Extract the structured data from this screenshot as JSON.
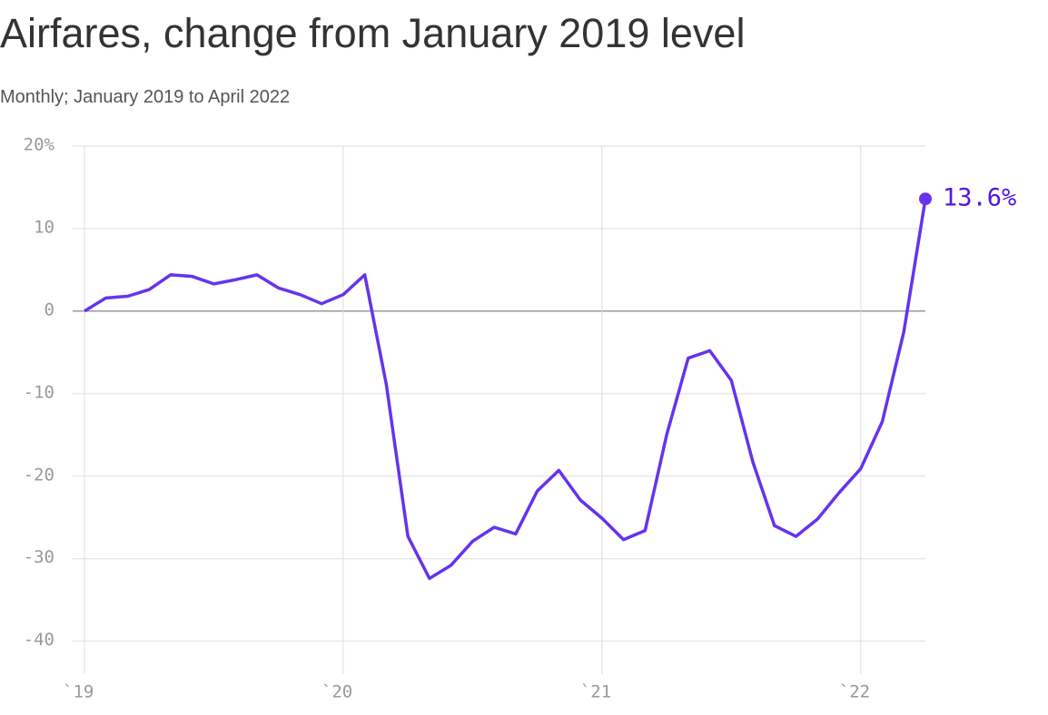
{
  "chart_data": {
    "type": "line",
    "title": "Airfares, change from January 2019 level",
    "subtitle": "Monthly; January 2019 to April 2022",
    "x": [
      "2019-01",
      "2019-02",
      "2019-03",
      "2019-04",
      "2019-05",
      "2019-06",
      "2019-07",
      "2019-08",
      "2019-09",
      "2019-10",
      "2019-11",
      "2019-12",
      "2020-01",
      "2020-02",
      "2020-03",
      "2020-04",
      "2020-05",
      "2020-06",
      "2020-07",
      "2020-08",
      "2020-09",
      "2020-10",
      "2020-11",
      "2020-12",
      "2021-01",
      "2021-02",
      "2021-03",
      "2021-04",
      "2021-05",
      "2021-06",
      "2021-07",
      "2021-08",
      "2021-09",
      "2021-10",
      "2021-11",
      "2021-12",
      "2022-01",
      "2022-02",
      "2022-03",
      "2022-04"
    ],
    "series": [
      {
        "color": "#6633ee",
        "values": [
          0,
          1.6,
          1.8,
          2.6,
          4.4,
          4.2,
          3.3,
          3.8,
          4.4,
          2.8,
          2.0,
          0.9,
          2.0,
          4.4,
          -8.9,
          -27.3,
          -32.4,
          -30.8,
          -27.9,
          -26.2,
          -27.0,
          -21.8,
          -19.3,
          -22.9,
          -25.1,
          -27.7,
          -26.6,
          -15.0,
          -5.7,
          -4.8,
          -8.4,
          -18.3,
          -26.0,
          -27.3,
          -25.2,
          -22.0,
          -19.1,
          -13.4,
          -2.5,
          13.6
        ],
        "value_labels": [
          null,
          null,
          null,
          null,
          null,
          null,
          null,
          null,
          null,
          null,
          null,
          null,
          null,
          null,
          null,
          null,
          null,
          null,
          null,
          null,
          null,
          null,
          null,
          null,
          null,
          null,
          null,
          null,
          null,
          null,
          null,
          null,
          null,
          null,
          null,
          null,
          null,
          null,
          null,
          "13.6%"
        ]
      }
    ],
    "xlim": [
      "2019-01",
      "2022-04"
    ],
    "xticks": [
      {
        "value": "2019-01",
        "label": "`19"
      },
      {
        "value": "2020-01",
        "label": "`20"
      },
      {
        "value": "2021-01",
        "label": "`21"
      },
      {
        "value": "2022-01",
        "label": "`22"
      }
    ],
    "ylim": [
      -44,
      20
    ],
    "yticks": [
      {
        "value": 20,
        "label": "20%"
      },
      10,
      0,
      -10,
      -20,
      -30,
      -40
    ],
    "grid": true
  }
}
